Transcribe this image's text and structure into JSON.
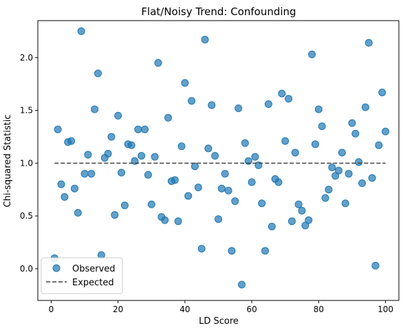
{
  "chart_data": {
    "type": "scatter",
    "title": "Flat/Noisy Trend: Confounding",
    "xlabel": "LD Score",
    "ylabel": "Chi-squared Statistic",
    "xlim": [
      -4,
      104
    ],
    "ylim": [
      -0.3,
      2.35
    ],
    "x_ticks": [
      0,
      20,
      40,
      60,
      80,
      100
    ],
    "x_tick_labels": [
      "0",
      "20",
      "40",
      "60",
      "80",
      "100"
    ],
    "y_ticks": [
      0.0,
      0.5,
      1.0,
      1.5,
      2.0
    ],
    "y_tick_labels": [
      "0.0",
      "0.5",
      "1.0",
      "1.5",
      "2.0"
    ],
    "grid": false,
    "legend_position": "lower-left",
    "series": [
      {
        "name": "Observed",
        "kind": "scatter",
        "color": "#1f77b4",
        "x": [
          1,
          2,
          3,
          4,
          5,
          6,
          7,
          8,
          9,
          10,
          11,
          12,
          13,
          14,
          15,
          16,
          17,
          18,
          19,
          20,
          21,
          22,
          23,
          24,
          25,
          26,
          27,
          28,
          29,
          30,
          31,
          32,
          33,
          34,
          35,
          36,
          37,
          38,
          39,
          40,
          41,
          42,
          43,
          44,
          45,
          46,
          47,
          48,
          49,
          50,
          51,
          52,
          53,
          54,
          55,
          56,
          57,
          58,
          59,
          60,
          61,
          62,
          63,
          64,
          65,
          66,
          67,
          68,
          69,
          70,
          71,
          72,
          73,
          74,
          75,
          76,
          77,
          78,
          79,
          80,
          81,
          82,
          83,
          84,
          85,
          86,
          87,
          88,
          89,
          90,
          91,
          92,
          93,
          94,
          95,
          96,
          97,
          98,
          99,
          100
        ],
        "y": [
          0.1,
          1.32,
          0.8,
          0.68,
          1.2,
          1.21,
          0.76,
          0.53,
          2.25,
          0.9,
          1.08,
          0.9,
          1.51,
          1.85,
          0.13,
          1.05,
          1.09,
          1.25,
          0.51,
          1.45,
          0.91,
          0.6,
          1.18,
          1.17,
          1.02,
          1.32,
          1.07,
          1.32,
          0.89,
          0.61,
          1.06,
          1.95,
          0.49,
          0.46,
          1.43,
          0.83,
          0.84,
          0.45,
          1.16,
          1.76,
          0.69,
          1.59,
          0.97,
          0.77,
          0.19,
          2.17,
          1.14,
          1.55,
          1.07,
          0.47,
          0.76,
          0.9,
          0.74,
          0.17,
          0.64,
          1.52,
          -0.15,
          1.19,
          1.02,
          0.82,
          1.06,
          0.98,
          0.62,
          0.17,
          1.56,
          0.4,
          0.85,
          0.82,
          1.66,
          1.21,
          1.61,
          0.45,
          1.1,
          0.61,
          0.55,
          0.41,
          0.46,
          2.03,
          1.18,
          1.51,
          1.35,
          0.67,
          0.75,
          0.96,
          0.88,
          0.93,
          1.1,
          0.62,
          0.9,
          1.38,
          1.28,
          1.01,
          0.81,
          1.53,
          2.14,
          0.86,
          0.03,
          1.17,
          1.67,
          1.3
        ]
      },
      {
        "name": "Expected",
        "kind": "line",
        "style": "dashed",
        "color": "#404040",
        "x": [
          1,
          100
        ],
        "y": [
          1.0,
          1.0
        ]
      }
    ]
  }
}
